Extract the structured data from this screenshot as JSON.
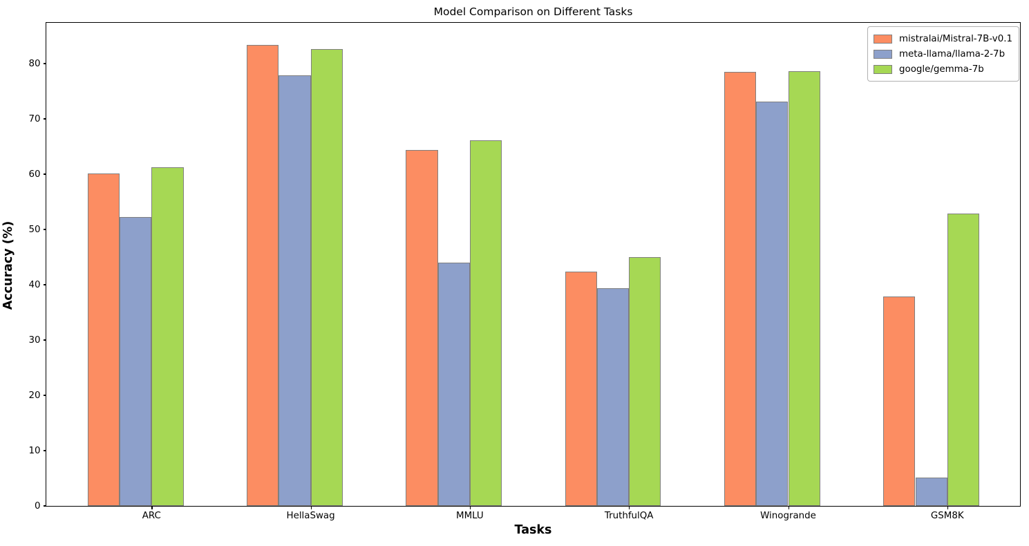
{
  "title": "Model Comparison on Different Tasks",
  "chart_data": {
    "type": "bar",
    "title": "Model Comparison on Different Tasks",
    "xlabel": "Tasks",
    "ylabel": "Accuracy (%)",
    "categories": [
      "ARC",
      "HellaSwag",
      "MMLU",
      "TruthfulQA",
      "Winogrande",
      "GSM8K"
    ],
    "series": [
      {
        "name": "mistralai/Mistral-7B-v0.1",
        "color": "#fc8d62",
        "values": [
          60.0,
          83.3,
          64.2,
          42.2,
          78.4,
          37.8
        ]
      },
      {
        "name": "meta-llama/llama-2-7b",
        "color": "#8da0cb",
        "values": [
          52.1,
          77.7,
          43.9,
          39.3,
          73.0,
          5.0
        ]
      },
      {
        "name": "google/gemma-7b",
        "color": "#a6d854",
        "values": [
          61.1,
          82.5,
          66.0,
          44.9,
          78.5,
          52.8
        ]
      }
    ],
    "ylim": [
      0,
      87.375
    ],
    "yticks": [
      0,
      10,
      20,
      30,
      40,
      50,
      60,
      70,
      80
    ],
    "grid": false,
    "legend_position": "upper right",
    "bar_edge_color": "#7f7f7f",
    "background_color": "#ffffff"
  }
}
